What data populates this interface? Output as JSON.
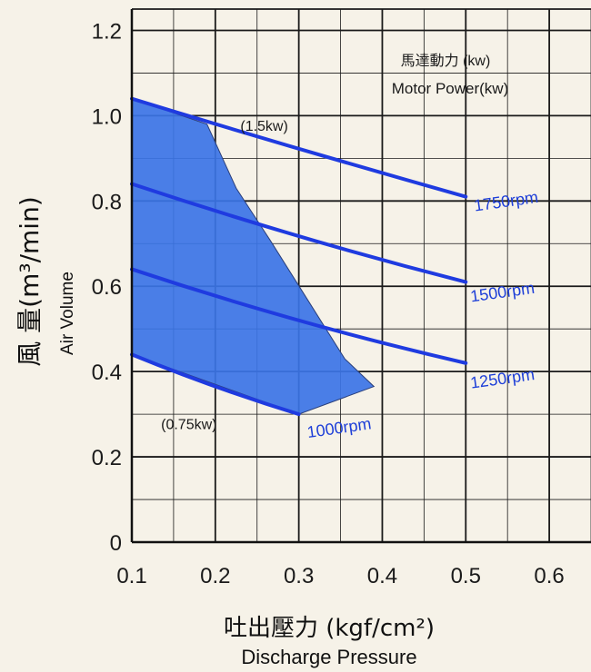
{
  "chart_data": {
    "type": "line",
    "title": "",
    "xlabel": "吐出壓力 (kgf/cm²)",
    "xlabel_en": "Discharge Pressure",
    "ylabel": "風 量(m³/min)",
    "ylabel_en": "Air Volume",
    "xlim": [
      0.1,
      0.65
    ],
    "ylim": [
      0,
      1.25
    ],
    "x_ticks": [
      "0.1",
      "0.2",
      "0.3",
      "0.4",
      "0.5",
      "0.6"
    ],
    "y_ticks": [
      "0",
      "0.2",
      "0.4",
      "0.6",
      "0.8",
      "1.0",
      "1.2"
    ],
    "grid": true,
    "legend_title_cn": "馬達動力 (kw)",
    "legend_title_en": "Motor Power(kw)",
    "series": [
      {
        "name": "1750rpm",
        "x": [
          0.1,
          0.3,
          0.5
        ],
        "y": [
          1.04,
          0.92,
          0.81
        ]
      },
      {
        "name": "1500rpm",
        "x": [
          0.1,
          0.3,
          0.5
        ],
        "y": [
          0.84,
          0.71,
          0.61
        ]
      },
      {
        "name": "1250rpm",
        "x": [
          0.1,
          0.3,
          0.5
        ],
        "y": [
          0.64,
          0.51,
          0.42
        ]
      },
      {
        "name": "1000rpm",
        "x": [
          0.1,
          0.2,
          0.3
        ],
        "y": [
          0.44,
          0.36,
          0.3
        ]
      }
    ],
    "operating_region": {
      "x": [
        0.1,
        0.19,
        0.225,
        0.265,
        0.31,
        0.355,
        0.39,
        0.3,
        0.1
      ],
      "y": [
        1.04,
        0.98,
        0.83,
        0.71,
        0.57,
        0.43,
        0.365,
        0.3,
        0.44
      ]
    },
    "annotations": [
      {
        "text": "(1.5kw)",
        "x": 0.23,
        "y": 0.965
      },
      {
        "text": "(0.75kw)",
        "x": 0.135,
        "y": 0.265
      }
    ],
    "colors": {
      "line": "#1f3be0",
      "fill": "#3b74e6",
      "grid": "#1a1a1a",
      "background": "#f6f2e8"
    }
  }
}
